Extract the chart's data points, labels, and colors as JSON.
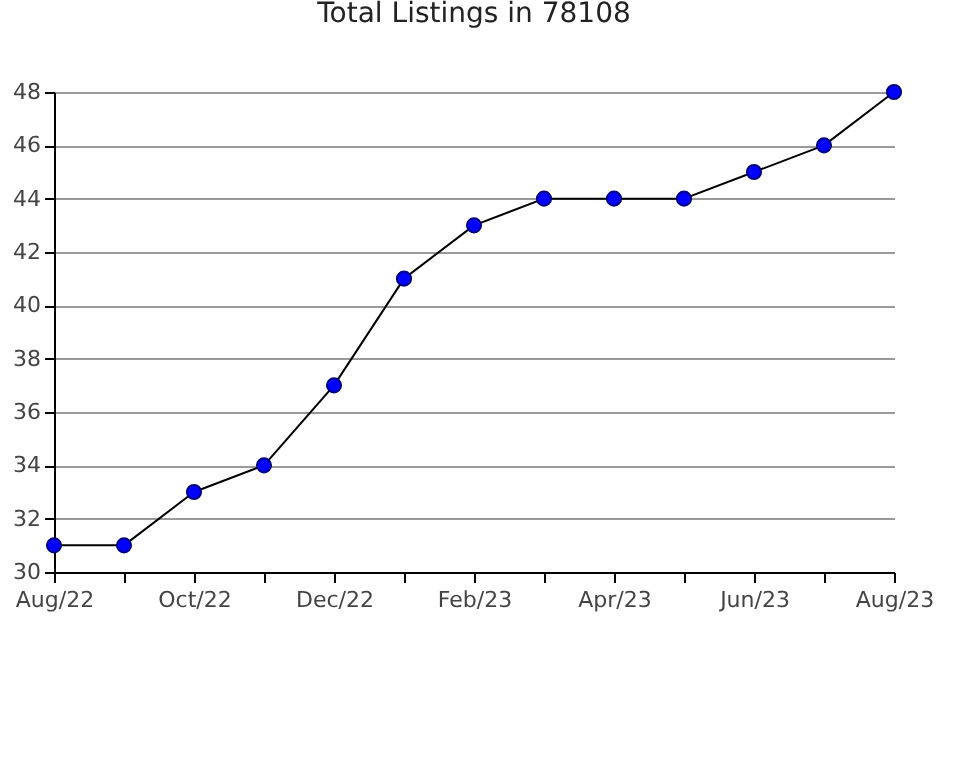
{
  "chart_data": {
    "type": "line",
    "title": "Total Listings in 78108",
    "categories": [
      "Aug/22",
      null,
      "Oct/22",
      null,
      "Dec/22",
      null,
      "Feb/23",
      null,
      "Apr/23",
      null,
      "Jun/23",
      null,
      "Aug/23"
    ],
    "series": [
      {
        "color": "#0000ff",
        "values": [
          31,
          31,
          33,
          34,
          37,
          41,
          43,
          44,
          44,
          44,
          45,
          46,
          48
        ]
      }
    ],
    "ylim": [
      30,
      48
    ],
    "yticks": [
      30,
      32,
      34,
      36,
      38,
      40,
      42,
      44,
      46,
      48
    ],
    "grid": "y",
    "marker": "circle",
    "line_style": "solid"
  }
}
